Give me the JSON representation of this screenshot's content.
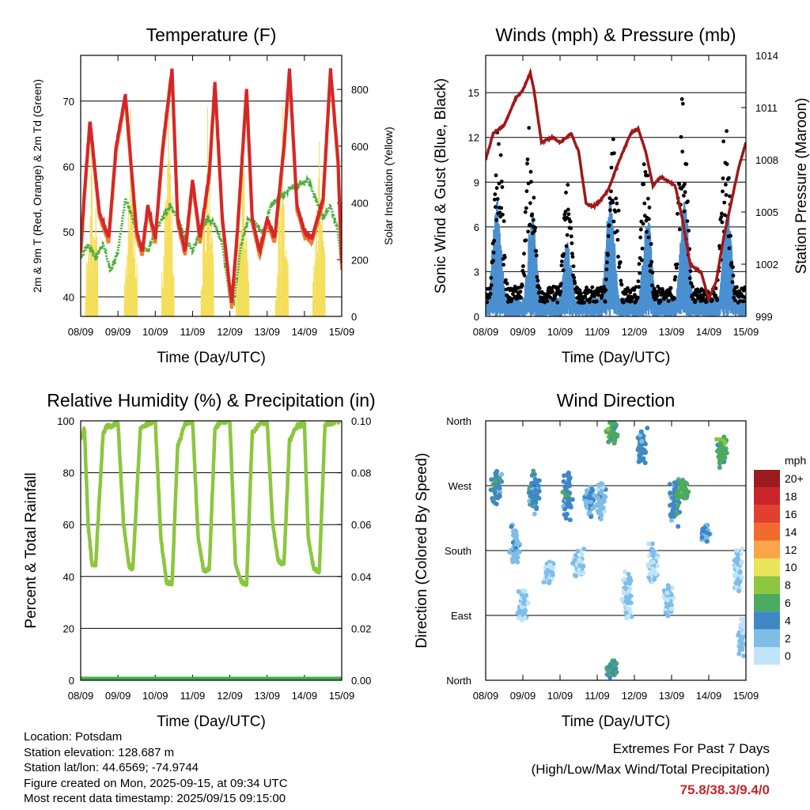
{
  "colors": {
    "temp2m": "#d62728",
    "temp9m": "#f07c2b",
    "dewpoint": "#4cae3c",
    "insolation": "#f5de5a",
    "wind": "#4a90d0",
    "gust": "#000000",
    "pressure": "#a01818",
    "rh": "#8cc63e",
    "precip": "#3fae49"
  },
  "chart_data": [
    {
      "id": "temperature",
      "type": "line",
      "title": "Temperature (F)",
      "xlabel": "Time (Day/UTC)",
      "ylabel": "2m & 9m T (Red, Orange) & 2m Td (Green)",
      "y2label": "Solar Insolation (Yellow)",
      "xticks": [
        "08/09",
        "09/09",
        "10/09",
        "11/09",
        "12/09",
        "13/09",
        "14/09",
        "15/09"
      ],
      "ylim": [
        37,
        77
      ],
      "yticks": [
        40,
        50,
        60,
        70
      ],
      "y2lim": [
        0,
        920
      ],
      "y2ticks": [
        0,
        200,
        400,
        600,
        800
      ],
      "grid": "horizontal",
      "series": [
        {
          "name": "2m T",
          "color": "#d62728",
          "x": [
            0,
            0.1,
            0.25,
            0.5,
            0.75,
            0.95,
            1.2,
            1.5,
            1.65,
            1.8,
            2.0,
            2.2,
            2.45,
            2.6,
            2.8,
            3.0,
            3.2,
            3.45,
            3.6,
            3.8,
            3.95,
            4.05,
            4.2,
            4.45,
            4.6,
            4.8,
            5.0,
            5.2,
            5.45,
            5.6,
            5.8,
            6.0,
            6.2,
            6.5,
            6.7,
            6.9,
            7.0
          ],
          "y": [
            47,
            56,
            67,
            53,
            49,
            63,
            71,
            50,
            47,
            54,
            49,
            63,
            75,
            52,
            47,
            58,
            49,
            59,
            73,
            52,
            44,
            39,
            50,
            72,
            52,
            47,
            52,
            49,
            63,
            75,
            54,
            50,
            49,
            55,
            75,
            61,
            45
          ]
        },
        {
          "name": "2m Td",
          "color": "#4cae3c",
          "x": [
            0,
            0.2,
            0.4,
            0.6,
            0.8,
            1.0,
            1.2,
            1.4,
            1.6,
            1.8,
            2.0,
            2.2,
            2.4,
            2.6,
            2.8,
            3.0,
            3.2,
            3.4,
            3.6,
            3.8,
            4.0,
            4.1,
            4.3,
            4.5,
            4.7,
            4.9,
            5.1,
            5.3,
            5.5,
            5.7,
            5.9,
            6.1,
            6.3,
            6.5,
            6.7,
            6.9,
            7.0
          ],
          "y": [
            46,
            48,
            46,
            48,
            44,
            47,
            55,
            52,
            48,
            47,
            50,
            52,
            54,
            52,
            49,
            47,
            50,
            52,
            51,
            48,
            40,
            39,
            48,
            52,
            51,
            50,
            54,
            55,
            56,
            57,
            57,
            58,
            55,
            52,
            54,
            50,
            45
          ]
        },
        {
          "name": "Solar Insolation",
          "axis": "y2",
          "color": "#f5de5a",
          "peaks_x": [
            0.3,
            1.35,
            2.35,
            3.4,
            4.35,
            5.4,
            6.4
          ],
          "peaks_y": [
            880,
            820,
            800,
            800,
            780,
            760,
            760
          ]
        }
      ]
    },
    {
      "id": "winds",
      "type": "scatter",
      "title": "Winds (mph) & Pressure (mb)",
      "xlabel": "Time (Day/UTC)",
      "ylabel": "Sonic Wind & Gust (Blue, Black)",
      "y2label": "Station Pressure (Maroon)",
      "xticks": [
        "08/09",
        "09/09",
        "10/09",
        "11/09",
        "12/09",
        "13/09",
        "14/09",
        "15/09"
      ],
      "ylim": [
        0,
        17.5
      ],
      "yticks": [
        0,
        3,
        6,
        9,
        12,
        15
      ],
      "y2lim": [
        999,
        1014
      ],
      "y2ticks": [
        999,
        1002,
        1005,
        1008,
        1011,
        1014
      ],
      "grid": "horizontal",
      "series": [
        {
          "name": "Station Pressure",
          "axis": "y2",
          "color": "#a01818",
          "x": [
            0,
            0.2,
            0.5,
            0.8,
            1.0,
            1.2,
            1.3,
            1.5,
            1.8,
            2.0,
            2.3,
            2.5,
            2.7,
            2.9,
            3.1,
            3.3,
            3.6,
            3.9,
            4.1,
            4.3,
            4.5,
            4.7,
            4.9,
            5.1,
            5.3,
            5.5,
            5.8,
            6.0,
            6.2,
            6.4,
            6.6,
            6.8,
            7.0
          ],
          "y": [
            1008,
            1009.5,
            1010,
            1011.5,
            1012,
            1013,
            1012,
            1009,
            1009.3,
            1009,
            1009.5,
            1008.5,
            1005.5,
            1005.3,
            1005.7,
            1006.3,
            1008,
            1009.5,
            1009.8,
            1008.5,
            1006.5,
            1007,
            1006.8,
            1006.5,
            1004.5,
            1002,
            1001.5,
            1000,
            1001,
            1003.5,
            1005.5,
            1007.5,
            1009
          ]
        },
        {
          "name": "Sonic Wind",
          "color": "#4a90d0",
          "peaks_x": [
            0.3,
            1.25,
            2.2,
            3.35,
            4.35,
            5.35,
            6.5
          ],
          "peaks_y": [
            8,
            7,
            5,
            8,
            7,
            8,
            7.5
          ]
        },
        {
          "name": "Gust",
          "color": "#000000",
          "peaks_x": [
            0.35,
            1.2,
            2.2,
            3.45,
            4.3,
            5.3,
            6.45
          ],
          "peaks_y": [
            13,
            13.5,
            9,
            12.5,
            11,
            15,
            13
          ]
        }
      ]
    },
    {
      "id": "humidity",
      "type": "line",
      "title": "Relative Humidity (%) & Precipitation (in)",
      "xlabel": "Time (Day/UTC)",
      "ylabel": "Percent & Total Rainfall",
      "xticks": [
        "08/09",
        "09/09",
        "10/09",
        "11/09",
        "12/09",
        "13/09",
        "14/09",
        "15/09"
      ],
      "ylim": [
        0,
        100
      ],
      "yticks": [
        0,
        20,
        40,
        60,
        80,
        100
      ],
      "y2lim": [
        0,
        0.1
      ],
      "y2ticks": [
        "0.00",
        "0.02",
        "0.04",
        "0.06",
        "0.08",
        "0.10"
      ],
      "grid": "horizontal",
      "series": [
        {
          "name": "Relative Humidity",
          "color": "#8cc63e",
          "x": [
            0,
            0.1,
            0.2,
            0.3,
            0.4,
            0.5,
            0.6,
            0.7,
            0.85,
            1.0,
            1.15,
            1.3,
            1.4,
            1.5,
            1.6,
            1.8,
            2.0,
            2.15,
            2.3,
            2.45,
            2.6,
            2.8,
            3.0,
            3.15,
            3.3,
            3.45,
            3.6,
            3.8,
            4.0,
            4.15,
            4.3,
            4.45,
            4.6,
            4.8,
            5.0,
            5.15,
            5.3,
            5.45,
            5.6,
            5.8,
            6.0,
            6.1,
            6.25,
            6.4,
            6.55,
            6.7,
            6.85,
            7.0
          ],
          "y": [
            93,
            97,
            60,
            45,
            44,
            70,
            95,
            98,
            98,
            99,
            60,
            44,
            43,
            70,
            97,
            99,
            100,
            55,
            38,
            37,
            90,
            99,
            100,
            55,
            42,
            43,
            97,
            100,
            100,
            45,
            38,
            37,
            95,
            99,
            100,
            60,
            46,
            45,
            92,
            98,
            99,
            55,
            43,
            42,
            98,
            99,
            100,
            100
          ]
        },
        {
          "name": "Precipitation",
          "axis": "y2",
          "color": "#3fae49",
          "x": [
            0,
            7
          ],
          "y": [
            0,
            0
          ]
        }
      ]
    },
    {
      "id": "wind_direction",
      "type": "scatter",
      "title": "Wind Direction",
      "xlabel": "Time (Day/UTC)",
      "ylabel": "Direction (Colored By Speed)",
      "xticks": [
        "08/09",
        "09/09",
        "10/09",
        "11/09",
        "12/09",
        "13/09",
        "14/09",
        "15/09"
      ],
      "yticks": [
        "North",
        "East",
        "South",
        "West",
        "North"
      ],
      "ylim": [
        0,
        360
      ],
      "grid": "horizontal",
      "legend": {
        "title": "mph",
        "labels": [
          "20+",
          "18",
          "16",
          "14",
          "12",
          "10",
          "8",
          "6",
          "4",
          "2",
          "0"
        ],
        "colors": [
          "#9b1b1f",
          "#c8252b",
          "#e2402f",
          "#f36a2d",
          "#f9a54a",
          "#e9e55a",
          "#8cc63e",
          "#4aaa60",
          "#3f88c5",
          "#7fbde8",
          "#bfe4f8"
        ]
      },
      "clusters": [
        {
          "x": 0.3,
          "dir": 270,
          "spread": 35,
          "speed": 4
        },
        {
          "x": 0.8,
          "dir": 190,
          "spread": 40,
          "speed": 2
        },
        {
          "x": 1.3,
          "dir": 260,
          "spread": 40,
          "speed": 4
        },
        {
          "x": 1.0,
          "dir": 105,
          "spread": 30,
          "speed": 1
        },
        {
          "x": 1.7,
          "dir": 150,
          "spread": 20,
          "speed": 1
        },
        {
          "x": 2.2,
          "dir": 255,
          "spread": 45,
          "speed": 4
        },
        {
          "x": 2.5,
          "dir": 160,
          "spread": 30,
          "speed": 1
        },
        {
          "x": 2.8,
          "dir": 250,
          "spread": 30,
          "speed": 3
        },
        {
          "x": 3.4,
          "dir": 345,
          "spread": 20,
          "speed": 6
        },
        {
          "x": 3.4,
          "dir": 15,
          "spread": 15,
          "speed": 5
        },
        {
          "x": 3.1,
          "dir": 250,
          "spread": 40,
          "speed": 2
        },
        {
          "x": 3.8,
          "dir": 120,
          "spread": 50,
          "speed": 1
        },
        {
          "x": 4.2,
          "dir": 320,
          "spread": 35,
          "speed": 4
        },
        {
          "x": 4.5,
          "dir": 160,
          "spread": 40,
          "speed": 1
        },
        {
          "x": 5.1,
          "dir": 250,
          "spread": 40,
          "speed": 4
        },
        {
          "x": 5.3,
          "dir": 265,
          "spread": 20,
          "speed": 6
        },
        {
          "x": 4.9,
          "dir": 110,
          "spread": 30,
          "speed": 1
        },
        {
          "x": 5.9,
          "dir": 205,
          "spread": 15,
          "speed": 3
        },
        {
          "x": 6.35,
          "dir": 320,
          "spread": 30,
          "speed": 6
        },
        {
          "x": 6.8,
          "dir": 150,
          "spread": 45,
          "speed": 1
        },
        {
          "x": 6.9,
          "dir": 60,
          "spread": 30,
          "speed": 1
        }
      ]
    }
  ],
  "info": {
    "location": "Location: Potsdam",
    "elevation": "Station elevation: 128.687 m",
    "latlon": "Station lat/lon: 44.6569; -74.9744",
    "created": "Figure created on Mon, 2025-09-15, at 09:34 UTC",
    "recent": "Most recent data timestamp: 2025/09/15 09:15:00"
  },
  "extremes": {
    "title": "Extremes For Past 7 Days",
    "subtitle": "(High/Low/Max Wind/Total Precipitation)",
    "values": "75.8/38.3/9.4/0"
  }
}
